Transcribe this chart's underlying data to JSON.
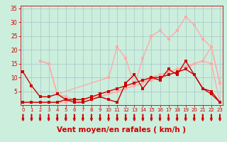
{
  "background_color": "#cceedd",
  "grid_color": "#aacccc",
  "xlabel": "Vent moyen/en rafales ( km/h )",
  "xlabel_color": "#cc0000",
  "xlabel_fontsize": 7.5,
  "tick_color": "#cc0000",
  "xlim": [
    -0.3,
    23.3
  ],
  "ylim": [
    0,
    36
  ],
  "xticks": [
    0,
    1,
    2,
    3,
    4,
    5,
    6,
    7,
    8,
    9,
    10,
    11,
    12,
    13,
    14,
    15,
    16,
    17,
    18,
    19,
    20,
    21,
    22,
    23
  ],
  "yticks": [
    5,
    10,
    15,
    20,
    25,
    30,
    35
  ],
  "series": [
    {
      "x": [
        2,
        3,
        4,
        5,
        6,
        7,
        8,
        9,
        10,
        11,
        12,
        13,
        14,
        15,
        16,
        17,
        18,
        19,
        20,
        21,
        22,
        23
      ],
      "y": [
        16,
        15,
        4,
        3,
        2,
        1,
        2,
        3,
        4,
        5,
        6,
        7,
        8,
        10,
        11,
        12,
        13,
        14,
        15,
        16,
        21,
        8
      ],
      "color": "#ffaaaa",
      "lw": 1.0,
      "ms": 2.5
    },
    {
      "x": [
        0,
        1,
        2,
        3,
        4,
        5,
        6,
        7,
        8,
        9,
        10,
        11,
        12,
        13,
        14,
        15,
        16,
        17,
        18,
        19,
        20,
        21,
        22,
        23
      ],
      "y": [
        1,
        1,
        1,
        1,
        1,
        1,
        2,
        2,
        3,
        3,
        4,
        5,
        6,
        7,
        8,
        9,
        10,
        11,
        12,
        13,
        15,
        16,
        15,
        1
      ],
      "color": "#ffaaaa",
      "lw": 1.0,
      "ms": 2.5
    },
    {
      "x": [
        2,
        3,
        4,
        10,
        11,
        12,
        13,
        14,
        15,
        16,
        17,
        18,
        19,
        20,
        21,
        22,
        23
      ],
      "y": [
        16,
        15,
        4,
        10,
        21,
        17,
        7,
        17,
        25,
        27,
        24,
        27,
        32,
        29,
        24,
        21,
        8
      ],
      "color": "#ffaaaa",
      "lw": 1.0,
      "ms": 2.5
    },
    {
      "x": [
        0,
        1,
        2,
        3,
        4,
        5,
        6,
        7,
        8,
        9,
        10,
        11,
        12,
        13,
        14,
        15,
        16,
        17,
        18,
        19,
        20,
        21,
        22,
        23
      ],
      "y": [
        12,
        7,
        3,
        3,
        4,
        2,
        1,
        1,
        2,
        3,
        2,
        1,
        8,
        11,
        6,
        10,
        9,
        13,
        11,
        16,
        11,
        6,
        4,
        1
      ],
      "color": "#cc0000",
      "lw": 1.0,
      "ms": 2.5
    },
    {
      "x": [
        0,
        1,
        2,
        3,
        4,
        5,
        6,
        7,
        8,
        9,
        10,
        11,
        12,
        13,
        14,
        15,
        16,
        17,
        18,
        19,
        20,
        21,
        22,
        23
      ],
      "y": [
        1,
        1,
        1,
        1,
        1,
        2,
        2,
        2,
        3,
        4,
        5,
        6,
        7,
        8,
        9,
        10,
        10,
        11,
        12,
        13,
        11,
        6,
        5,
        1
      ],
      "color": "#cc0000",
      "lw": 1.0,
      "ms": 2.5
    }
  ],
  "wind_arrows_x": [
    0,
    1,
    2,
    3,
    4,
    5,
    6,
    7,
    8,
    9,
    10,
    11,
    12,
    13,
    14,
    15,
    16,
    17,
    18,
    19,
    20,
    21,
    22,
    23
  ]
}
